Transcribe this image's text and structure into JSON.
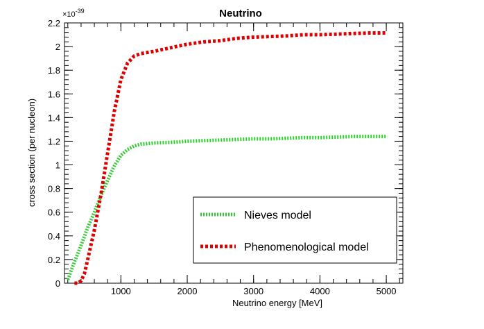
{
  "chart_data": {
    "type": "line",
    "title": "Neutrino",
    "xlabel": "Neutrino energy [MeV]",
    "ylabel": "cross section (per nucleon)",
    "y_exponent_label": "×10",
    "y_exponent_power": "-39",
    "xlim": [
      150,
      5250
    ],
    "ylim": [
      0,
      2.2
    ],
    "x_ticks": [
      1000,
      2000,
      3000,
      4000,
      5000
    ],
    "y_ticks": [
      0,
      0.2,
      0.4,
      0.6,
      0.8,
      1,
      1.2,
      1.4,
      1.6,
      1.8,
      2,
      2.2
    ],
    "grid": false,
    "legend_position": "bottom-right",
    "series": [
      {
        "name": "Nieves model",
        "color": "#33cc33",
        "style": "dotted",
        "x": [
          200,
          300,
          400,
          500,
          600,
          700,
          800,
          900,
          1000,
          1100,
          1200,
          1300,
          1400,
          1500,
          1750,
          2000,
          2250,
          2500,
          2750,
          3000,
          3250,
          3500,
          3750,
          4000,
          4250,
          4500,
          4750,
          5000
        ],
        "y": [
          0.03,
          0.18,
          0.32,
          0.47,
          0.6,
          0.74,
          0.87,
          0.99,
          1.08,
          1.13,
          1.16,
          1.175,
          1.18,
          1.185,
          1.19,
          1.2,
          1.205,
          1.21,
          1.215,
          1.22,
          1.22,
          1.225,
          1.23,
          1.23,
          1.235,
          1.24,
          1.24,
          1.24
        ]
      },
      {
        "name": "Phenomenological model",
        "color": "#dd0000",
        "style": "dashed",
        "x": [
          300,
          350,
          400,
          450,
          500,
          600,
          700,
          800,
          900,
          1000,
          1100,
          1200,
          1300,
          1400,
          1500,
          1750,
          2000,
          2250,
          2500,
          2750,
          3000,
          3250,
          3500,
          3750,
          4000,
          4250,
          4500,
          4750,
          5000
        ],
        "y": [
          0.0,
          0.0,
          0.02,
          0.08,
          0.2,
          0.45,
          0.75,
          1.1,
          1.45,
          1.72,
          1.86,
          1.92,
          1.94,
          1.95,
          1.96,
          1.99,
          2.02,
          2.04,
          2.05,
          2.07,
          2.08,
          2.085,
          2.09,
          2.1,
          2.1,
          2.105,
          2.11,
          2.115,
          2.115
        ]
      }
    ]
  }
}
